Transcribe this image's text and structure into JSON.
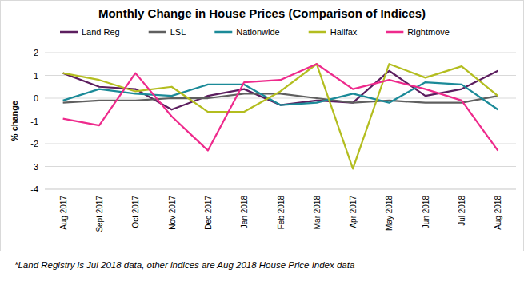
{
  "chart_data": {
    "type": "line",
    "title": "Monthly Change in House Prices (Comparison of Indices)",
    "y_label": "% change",
    "footnote": "*Land Registry is Jul 2018 data, other indices are Aug 2018 House Price Index data",
    "categories": [
      "Aug 2017",
      "Sept 2017",
      "Oct 2017",
      "Nov 2017",
      "Dec 2017",
      "Jan 2018",
      "Feb 2018",
      "Mar 2018",
      "Apr 2017",
      "May 2018",
      "Jun 2018",
      "Jul 2018",
      "Aug 2018"
    ],
    "series": [
      {
        "name": "Land Reg",
        "color": "#5c1e5f",
        "values": [
          1.1,
          0.5,
          0.4,
          -0.5,
          0.1,
          0.4,
          -0.3,
          -0.1,
          -0.2,
          1.2,
          0.1,
          0.4,
          1.2
        ]
      },
      {
        "name": "LSL",
        "color": "#5f5f5f",
        "values": [
          -0.2,
          -0.1,
          -0.1,
          0.0,
          0.0,
          0.2,
          0.2,
          0.0,
          -0.2,
          -0.1,
          -0.2,
          -0.2,
          0.1
        ]
      },
      {
        "name": "Nationwide",
        "color": "#1b8a98",
        "values": [
          -0.1,
          0.4,
          0.2,
          0.1,
          0.6,
          0.6,
          -0.3,
          -0.2,
          0.2,
          -0.2,
          0.7,
          0.6,
          -0.5
        ]
      },
      {
        "name": "Halifax",
        "color": "#b3bd1f",
        "values": [
          1.1,
          0.8,
          0.3,
          0.5,
          -0.6,
          -0.6,
          0.3,
          1.5,
          -3.1,
          1.5,
          0.9,
          1.4,
          0.1
        ]
      },
      {
        "name": "Rightmove",
        "color": "#ee2a8c",
        "values": [
          -0.9,
          -1.2,
          1.1,
          -0.8,
          -2.3,
          0.7,
          0.8,
          1.5,
          0.4,
          0.8,
          0.4,
          -0.1,
          -2.3
        ]
      }
    ],
    "ylim": [
      -4,
      2
    ],
    "yticks": [
      -4,
      -3,
      -2,
      -1,
      0,
      1,
      2
    ],
    "grid": true,
    "legend": "top"
  }
}
